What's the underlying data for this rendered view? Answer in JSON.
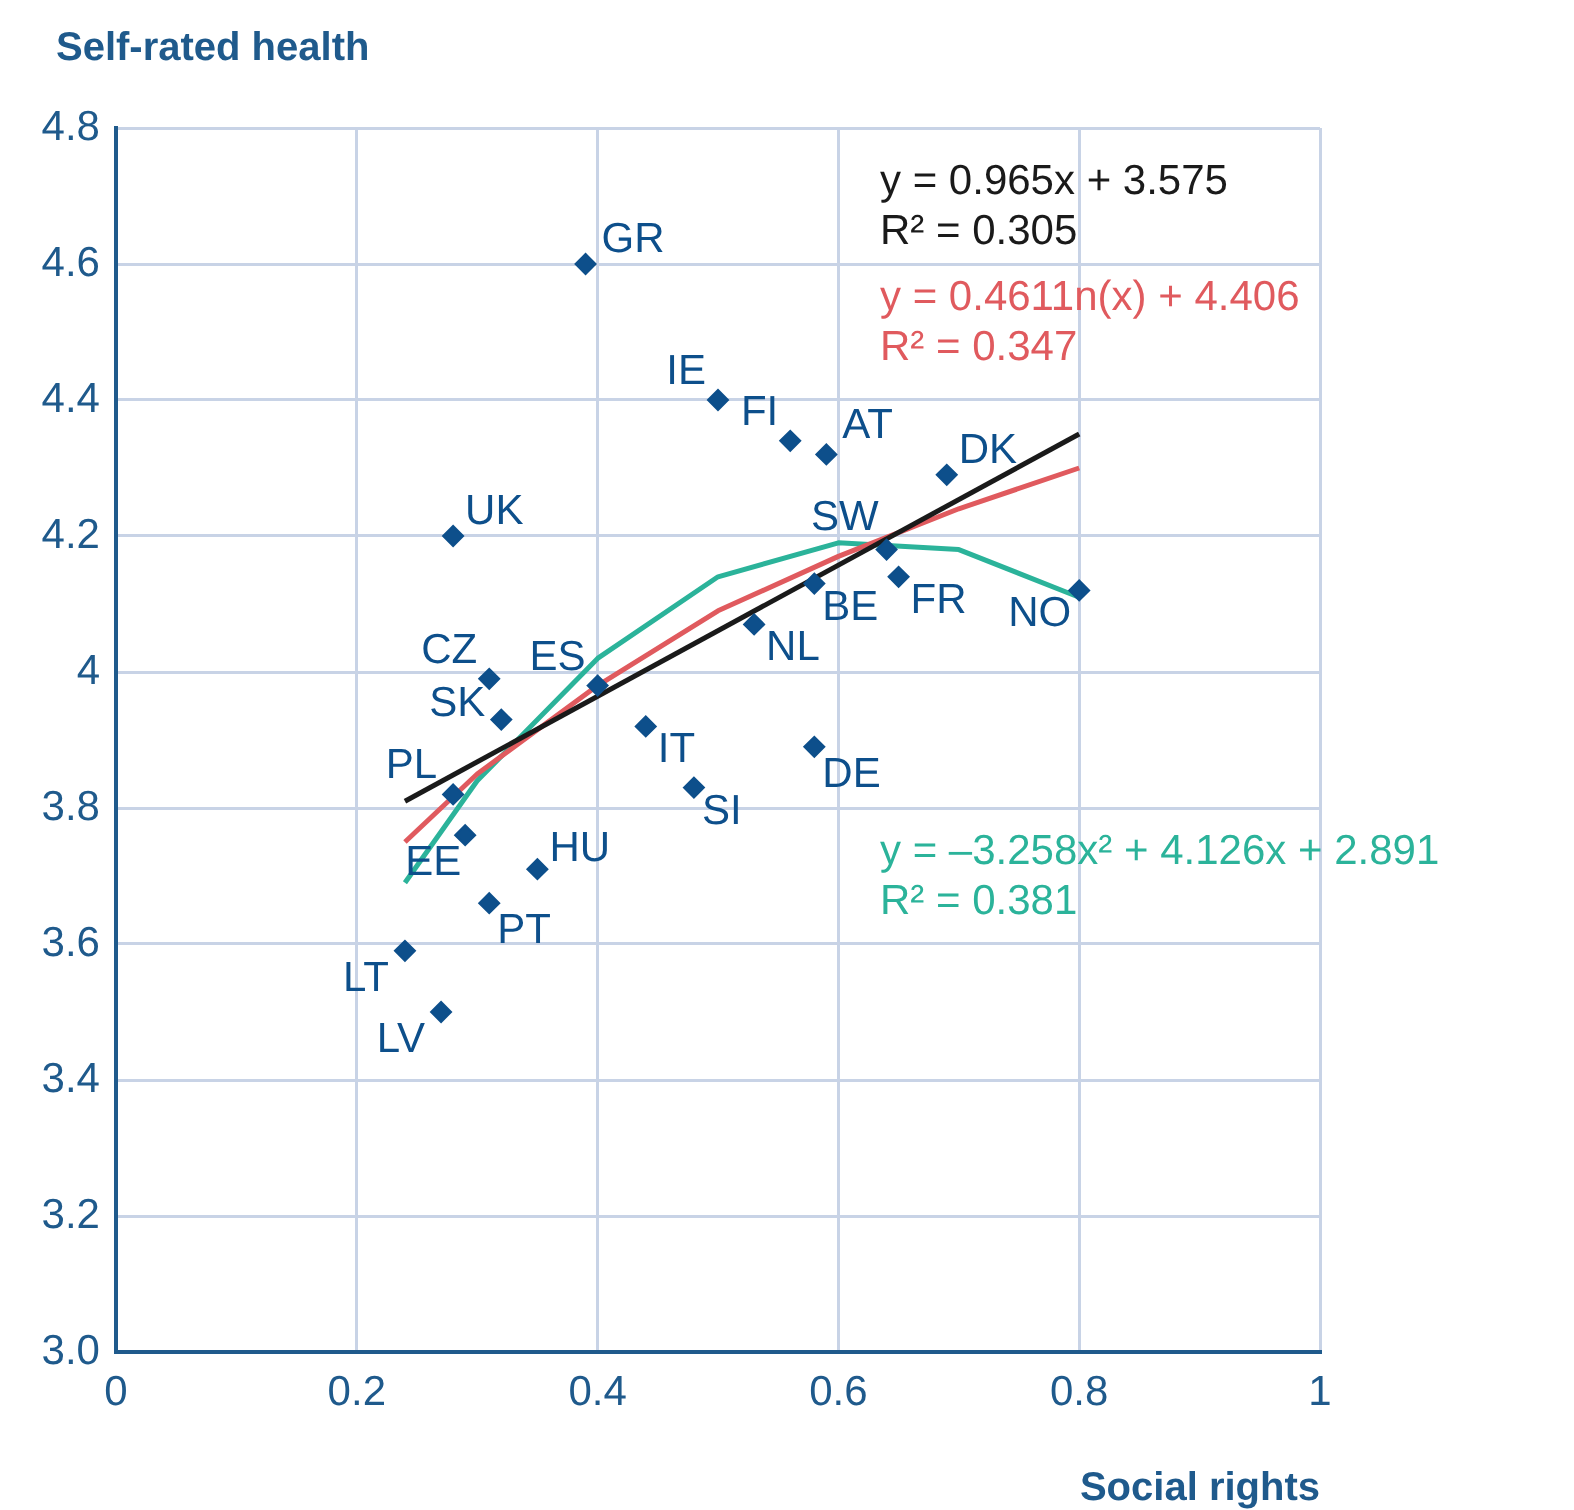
{
  "chart_data": {
    "type": "scatter",
    "xlabel": "Social rights",
    "ylabel": "Self-rated health",
    "xlim": [
      0,
      1
    ],
    "xticks": [
      0,
      0.2,
      0.4,
      0.6,
      0.8,
      1
    ],
    "ylim": [
      3,
      4.8
    ],
    "yticks": [
      {
        "value": 3,
        "label": "3.0"
      },
      3.2,
      3.4,
      3.6,
      3.8,
      4,
      4.2,
      4.4,
      4.6,
      4.8
    ],
    "grid": true,
    "legend": false,
    "marker": "diamond",
    "series": [
      {
        "name": "GR",
        "color": "#0d4f8b",
        "x": [
          0.39
        ],
        "values": [
          4.6
        ]
      },
      {
        "name": "IE",
        "color": "#0d4f8b",
        "x": [
          0.5
        ],
        "values": [
          4.4
        ]
      },
      {
        "name": "FI",
        "color": "#0d4f8b",
        "x": [
          0.56
        ],
        "values": [
          4.34
        ]
      },
      {
        "name": "AT",
        "color": "#0d4f8b",
        "x": [
          0.59
        ],
        "values": [
          4.32
        ]
      },
      {
        "name": "DK",
        "color": "#0d4f8b",
        "x": [
          0.69
        ],
        "values": [
          4.29
        ]
      },
      {
        "name": "UK",
        "color": "#0d4f8b",
        "x": [
          0.28
        ],
        "values": [
          4.2
        ]
      },
      {
        "name": "SW",
        "color": "#0d4f8b",
        "x": [
          0.64
        ],
        "values": [
          4.18
        ]
      },
      {
        "name": "FR",
        "color": "#0d4f8b",
        "x": [
          0.65
        ],
        "values": [
          4.14
        ]
      },
      {
        "name": "BE",
        "color": "#0d4f8b",
        "x": [
          0.58
        ],
        "values": [
          4.13
        ]
      },
      {
        "name": "NO",
        "color": "#0d4f8b",
        "x": [
          0.8
        ],
        "values": [
          4.12
        ]
      },
      {
        "name": "NL",
        "color": "#0d4f8b",
        "x": [
          0.53
        ],
        "values": [
          4.07
        ]
      },
      {
        "name": "CZ",
        "color": "#0d4f8b",
        "x": [
          0.31
        ],
        "values": [
          3.99
        ]
      },
      {
        "name": "ES",
        "color": "#0d4f8b",
        "x": [
          0.4
        ],
        "values": [
          3.98
        ]
      },
      {
        "name": "SK",
        "color": "#0d4f8b",
        "x": [
          0.32
        ],
        "values": [
          3.93
        ]
      },
      {
        "name": "IT",
        "color": "#0d4f8b",
        "x": [
          0.44
        ],
        "values": [
          3.92
        ]
      },
      {
        "name": "DE",
        "color": "#0d4f8b",
        "x": [
          0.58
        ],
        "values": [
          3.89
        ]
      },
      {
        "name": "SI",
        "color": "#0d4f8b",
        "x": [
          0.48
        ],
        "values": [
          3.83
        ]
      },
      {
        "name": "PL",
        "color": "#0d4f8b",
        "x": [
          0.28
        ],
        "values": [
          3.82
        ]
      },
      {
        "name": "EE",
        "color": "#0d4f8b",
        "x": [
          0.29
        ],
        "values": [
          3.76
        ]
      },
      {
        "name": "HU",
        "color": "#0d4f8b",
        "x": [
          0.35
        ],
        "values": [
          3.71
        ]
      },
      {
        "name": "PT",
        "color": "#0d4f8b",
        "x": [
          0.31
        ],
        "values": [
          3.66
        ]
      },
      {
        "name": "LT",
        "color": "#0d4f8b",
        "x": [
          0.24
        ],
        "values": [
          3.59
        ]
      },
      {
        "name": "LV",
        "color": "#0d4f8b",
        "x": [
          0.27
        ],
        "values": [
          3.5
        ]
      },
      {
        "type": "line",
        "name": "y = 0.965x + 3.575",
        "color": "#1a1a1a",
        "marker": "none",
        "x": [
          0.24,
          0.8
        ],
        "values": [
          3.81,
          4.35
        ]
      },
      {
        "type": "line",
        "name": "y = 0.4611n(x) + 4.406",
        "color": "#e05a5e",
        "marker": "none",
        "x": [
          0.24,
          0.3,
          0.4,
          0.5,
          0.6,
          0.7,
          0.8
        ],
        "values": [
          3.75,
          3.85,
          3.98,
          4.09,
          4.17,
          4.24,
          4.3
        ]
      },
      {
        "type": "line",
        "name": "y = –3.258x² + 4.126x + 2.891",
        "color": "#2bb39a",
        "marker": "none",
        "x": [
          0.24,
          0.3,
          0.4,
          0.5,
          0.6,
          0.7,
          0.8
        ],
        "values": [
          3.69,
          3.84,
          4.02,
          4.14,
          4.19,
          4.18,
          4.11
        ]
      }
    ],
    "annotations": [
      "R² = 0.305",
      "R² = 0.347",
      "R² = 0.381"
    ]
  }
}
